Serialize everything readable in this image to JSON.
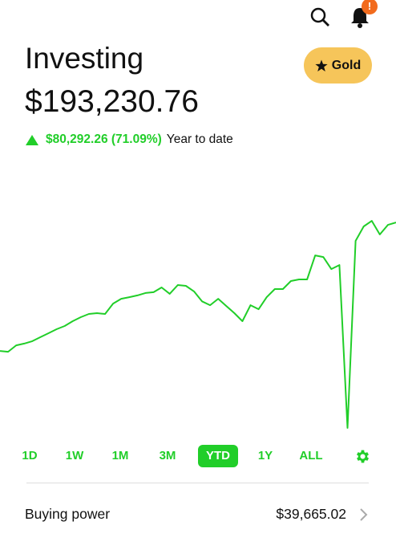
{
  "header": {
    "notification_badge": "!",
    "title": "Investing",
    "portfolio_value": "$193,230.76",
    "gold_button": "Gold",
    "change_amount": "$80,292.26 (71.09%)",
    "change_period": "Year to date"
  },
  "chart_data": {
    "type": "line",
    "color": "#21ce29",
    "ylim": [
      61250,
      211800
    ],
    "values": [
      112900,
      112400,
      116400,
      117500,
      119000,
      121500,
      124000,
      126500,
      128500,
      131500,
      134000,
      136000,
      136500,
      136000,
      142500,
      145500,
      146500,
      147600,
      149100,
      149600,
      152600,
      148600,
      154100,
      153600,
      150100,
      143900,
      141500,
      145500,
      141000,
      136500,
      131500,
      141500,
      139000,
      146500,
      151600,
      151600,
      156600,
      157600,
      157600,
      172600,
      171600,
      164100,
      166600,
      64800,
      181700,
      190700,
      194200,
      185700,
      191700,
      193200
    ]
  },
  "ranges": {
    "options": [
      "1D",
      "1W",
      "1M",
      "3M",
      "YTD",
      "1Y",
      "ALL"
    ],
    "selected_index": 4
  },
  "buying_power": {
    "label": "Buying power",
    "value": "$39,665.02"
  }
}
